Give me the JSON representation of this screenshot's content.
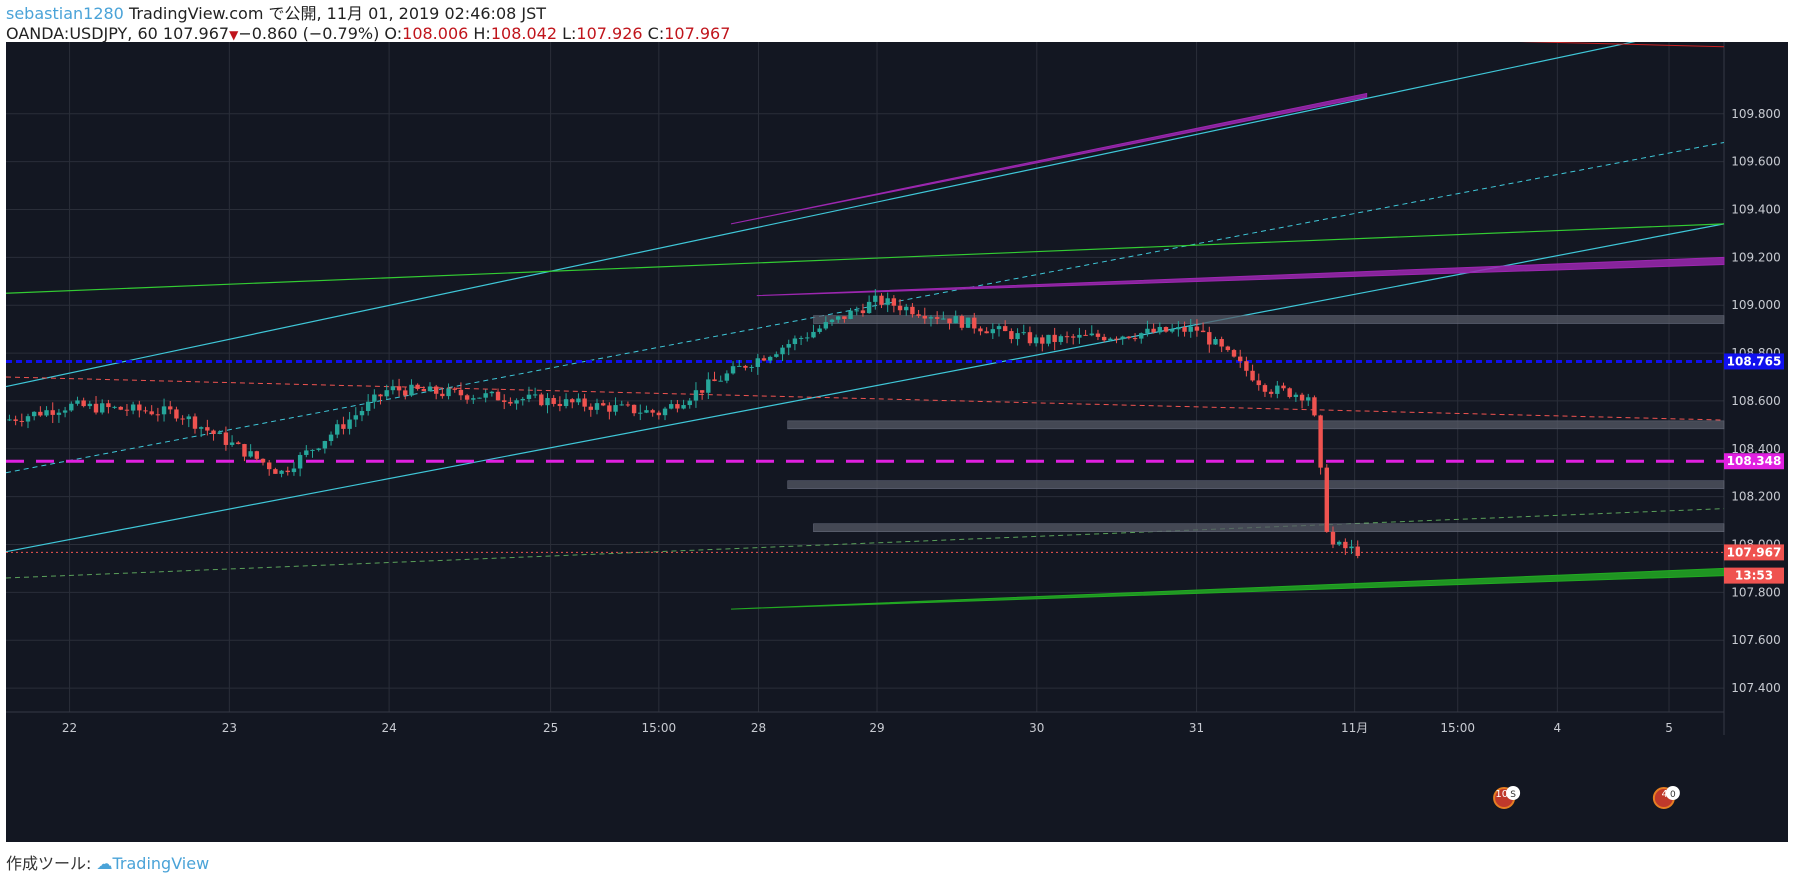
{
  "header": {
    "line1_user": "sebastian1280",
    "line1_rest": " TradingView.com で公開, 11月 01, 2019 02:46:08 JST",
    "symbol": "OANDA:USDJPY, 60 ",
    "last": "107.967",
    "down_arrow": "▼",
    "change": "−0.860 (−0.79%)",
    "o_label": " O:",
    "o_value": "108.006",
    "h_label": " H:",
    "h_value": "108.042",
    "l_label": " L:",
    "l_value": "107.926",
    "c_label": " C:",
    "c_value": "107.967"
  },
  "footer": {
    "label": "作成ツール: ",
    "brand": "TradingView"
  },
  "colors": {
    "background": "#131722",
    "grid": "#2a2e39",
    "up": "#26a69a",
    "down": "#ef5350",
    "cyan": "#3fc7d8",
    "green": "#33cc33",
    "magenta": "#e020e0",
    "purple": "#9c27b0",
    "blue": "#1010ee",
    "zone": "#555a66"
  },
  "chart_data": {
    "type": "candlestick",
    "symbol": "OANDA:USDJPY",
    "interval": "60",
    "ylim": [
      107.3,
      110.1
    ],
    "y_ticks": [
      "109.800",
      "109.600",
      "109.400",
      "109.200",
      "109.000",
      "108.800",
      "108.600",
      "108.400",
      "108.200",
      "108.000",
      "107.800",
      "107.600",
      "107.400"
    ],
    "x_ticks": [
      "22",
      "23",
      "24",
      "25",
      "15:00",
      "28",
      "29",
      "30",
      "31",
      "11月",
      "15:00",
      "4",
      "5"
    ],
    "price_tags": [
      {
        "label": "108.765",
        "value": 108.765,
        "color": "#1010ee"
      },
      {
        "label": "108.348",
        "value": 108.348,
        "color": "#e020e0"
      },
      {
        "label": "107.967",
        "value": 107.967,
        "color": "#ef5350"
      },
      {
        "label": "13:53",
        "value": 107.87,
        "color": "#ef5350"
      }
    ],
    "events": [
      {
        "label": "10",
        "extra": "S"
      },
      {
        "label": "4",
        "extra": "0"
      }
    ],
    "horizontal_levels": [
      {
        "name": "blue-dashed-level",
        "value": 108.765,
        "style": "dashed",
        "color": "#1010ee"
      },
      {
        "name": "magenta-dashed-level",
        "value": 108.348,
        "style": "dashed",
        "color": "#e020e0"
      },
      {
        "name": "last-price-line",
        "value": 107.967,
        "style": "dotted",
        "color": "#ef5350"
      }
    ],
    "zones": [
      {
        "value": 108.94,
        "from": 0.47
      },
      {
        "value": 108.5,
        "from": 0.455
      },
      {
        "value": 108.25,
        "from": 0.455
      },
      {
        "value": 108.07,
        "from": 0.47
      }
    ],
    "key_points": [
      {
        "x": "22",
        "close": 108.58
      },
      {
        "x": "23",
        "close": 108.55
      },
      {
        "x": "23",
        "close": 108.3
      },
      {
        "x": "24",
        "close": 108.65
      },
      {
        "x": "25",
        "close": 108.6
      },
      {
        "x": "15:00",
        "close": 108.55
      },
      {
        "x": "28",
        "close": 108.75
      },
      {
        "x": "29",
        "close": 109.02
      },
      {
        "x": "30",
        "close": 108.85
      },
      {
        "x": "31",
        "close": 108.9
      },
      {
        "x": "31",
        "close": 108.65
      },
      {
        "x": "11月",
        "close": 107.967
      }
    ]
  }
}
